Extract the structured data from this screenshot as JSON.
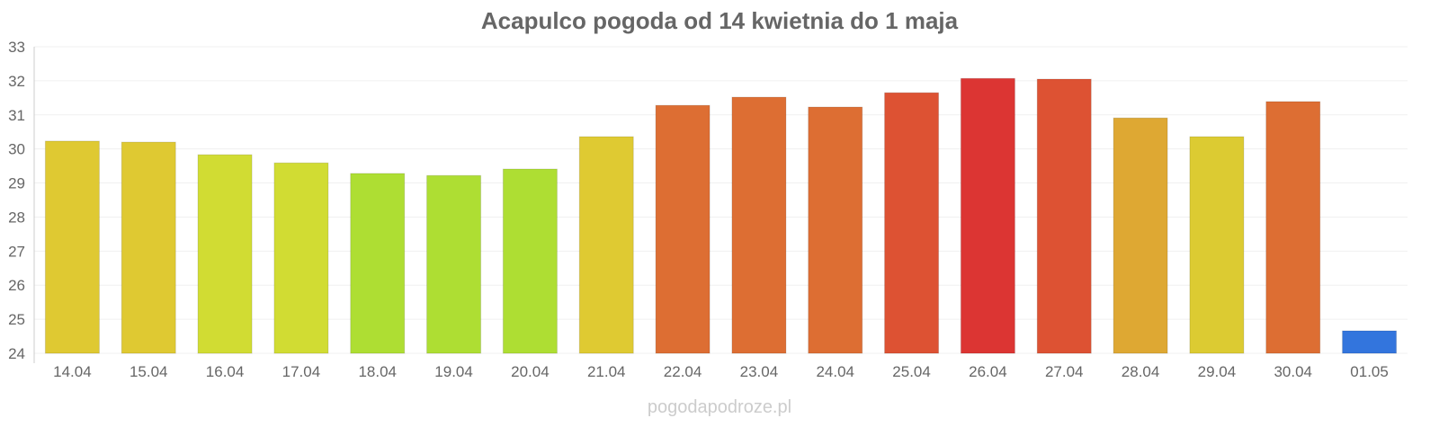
{
  "chart_data": {
    "type": "bar",
    "title": "Acapulco pogoda od 14 kwietnia do 1 maja",
    "xlabel": "",
    "ylabel": "",
    "ylim": [
      24,
      33
    ],
    "yticks": [
      "24",
      "25",
      "26",
      "27",
      "28",
      "29",
      "30",
      "31",
      "32",
      "33"
    ],
    "grid": true,
    "categories": [
      "14.04",
      "15.04",
      "16.04",
      "17.04",
      "18.04",
      "19.04",
      "20.04",
      "21.04",
      "22.04",
      "23.04",
      "24.04",
      "25.04",
      "26.04",
      "27.04",
      "28.04",
      "29.04",
      "30.04",
      "01.05"
    ],
    "values": [
      30.23,
      30.2,
      29.83,
      29.59,
      29.28,
      29.22,
      29.41,
      30.36,
      31.28,
      31.52,
      31.23,
      31.65,
      32.07,
      32.05,
      30.91,
      30.36,
      31.39,
      24.66
    ],
    "colors": [
      "#dfc932",
      "#dfc932",
      "#d1dc33",
      "#d1dc33",
      "#aede33",
      "#aede33",
      "#aede33",
      "#dfca32",
      "#dd6e33",
      "#dd6e33",
      "#dd6e33",
      "#dd5233",
      "#dc3533",
      "#dd5233",
      "#dea833",
      "#dccb32",
      "#dd6e33",
      "#3375dd"
    ]
  },
  "watermark": "pogodapodroze.pl"
}
